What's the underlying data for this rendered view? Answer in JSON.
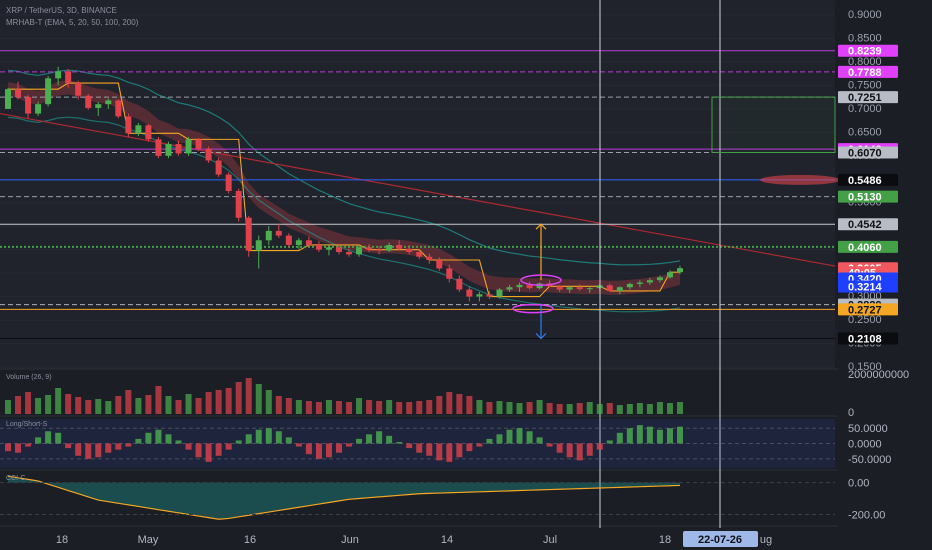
{
  "header": {
    "symbol_line": "XRP / TetherUS, 3D, BINANCE",
    "indicator_line": "MRHAB-T (EMA, 5, 20, 50, 100, 200)"
  },
  "colors": {
    "background": "#1c1e26",
    "up": "#4caf50",
    "down": "#e0424b",
    "accent_magenta": "#e040fb",
    "accent_orange": "#f5a623",
    "accent_blue": "#2962ff"
  },
  "chart_data": [
    {
      "type": "candlestick",
      "pane": "price",
      "title": "XRP / TetherUS, 3D, BINANCE",
      "indicator": "MRHAB-T (EMA, 5, 20, 50, 100, 200)",
      "ylim": [
        0.15,
        0.92
      ],
      "price_ticks": [
        "0.9000",
        "0.8500",
        "0.8000",
        "0.7500",
        "0.7000",
        "0.6500",
        "0.6000",
        "0.5500",
        "0.5000",
        "0.4500",
        "0.4000",
        "0.3500",
        "0.3000",
        "0.2500",
        "0.2000",
        "0.1500"
      ],
      "price_tags": [
        {
          "label": "0.8239",
          "value": 0.8239,
          "bg": "#e040fb",
          "fg": "#ffffff"
        },
        {
          "label": "0.7788",
          "value": 0.7788,
          "bg": "#e040fb",
          "fg": "#ffffff"
        },
        {
          "label": "0.7251",
          "value": 0.7251,
          "bg": "#b8bcc4",
          "fg": "#101218"
        },
        {
          "label": "0.6143",
          "value": 0.6143,
          "bg": "#e040fb",
          "fg": "#ffffff"
        },
        {
          "label": "0.6070",
          "value": 0.607,
          "bg": "#b8bcc4",
          "fg": "#101218"
        },
        {
          "label": "0.5486",
          "value": 0.5486,
          "bg": "#0b0c10",
          "fg": "#ffffff"
        },
        {
          "label": "0.5130",
          "value": 0.513,
          "bg": "#43a047",
          "fg": "#ffffff"
        },
        {
          "label": "0.4542",
          "value": 0.4542,
          "bg": "#b8bcc4",
          "fg": "#101218"
        },
        {
          "label": "0.4060",
          "value": 0.406,
          "bg": "#43a047",
          "fg": "#ffffff"
        },
        {
          "label": "0.3605",
          "value": 0.3605,
          "bg": "#f0575e",
          "fg": "#ffffff"
        },
        {
          "label": "49:05",
          "value": 0.3515,
          "bg": "#f0575e",
          "fg": "#ffffff"
        },
        {
          "label": "0.3420",
          "value": 0.3385,
          "bg": "#1f3fff",
          "fg": "#ffffff"
        },
        {
          "label": "0.3214",
          "value": 0.3214,
          "bg": "#1f3fff",
          "fg": "#ffffff"
        },
        {
          "label": "0.2829",
          "value": 0.2829,
          "bg": "#b8bcc4",
          "fg": "#101218"
        },
        {
          "label": "0.2727",
          "value": 0.2727,
          "bg": "#f5a623",
          "fg": "#101218"
        },
        {
          "label": "0.2108",
          "value": 0.2108,
          "bg": "#0b0c10",
          "fg": "#ffffff"
        }
      ],
      "horizontal_levels": [
        {
          "value": 0.8239,
          "color": "#b83cd8",
          "style": "solid"
        },
        {
          "value": 0.7788,
          "color": "#b83cd8",
          "style": "dashed"
        },
        {
          "value": 0.7251,
          "color": "#9aa0a6",
          "style": "dashed"
        },
        {
          "value": 0.6143,
          "color": "#b83cd8",
          "style": "solid"
        },
        {
          "value": 0.607,
          "color": "#9aa0a6",
          "style": "dashed"
        },
        {
          "value": 0.5486,
          "color": "#2962ff",
          "style": "solid"
        },
        {
          "value": 0.513,
          "color": "#9aa0a6",
          "style": "dashed"
        },
        {
          "value": 0.4542,
          "color": "#c7c9cc",
          "style": "solid"
        },
        {
          "value": 0.406,
          "color": "#43a047",
          "style": "dotted"
        },
        {
          "value": 0.2829,
          "color": "#b0b3b8",
          "style": "dashed"
        },
        {
          "value": 0.2727,
          "color": "#f5a623",
          "style": "solid"
        },
        {
          "value": 0.2108,
          "color": "#0b0c10",
          "style": "solid"
        }
      ],
      "candles": [
        [
          0.7,
          0.745,
          0.7,
          0.742
        ],
        [
          0.742,
          0.758,
          0.72,
          0.725
        ],
        [
          0.725,
          0.73,
          0.68,
          0.69
        ],
        [
          0.69,
          0.715,
          0.685,
          0.71
        ],
        [
          0.71,
          0.77,
          0.705,
          0.765
        ],
        [
          0.765,
          0.79,
          0.75,
          0.78
        ],
        [
          0.78,
          0.785,
          0.745,
          0.755
        ],
        [
          0.755,
          0.76,
          0.72,
          0.728
        ],
        [
          0.728,
          0.732,
          0.698,
          0.702
        ],
        [
          0.702,
          0.715,
          0.685,
          0.71
        ],
        [
          0.71,
          0.722,
          0.7,
          0.718
        ],
        [
          0.718,
          0.72,
          0.68,
          0.684
        ],
        [
          0.684,
          0.69,
          0.64,
          0.648
        ],
        [
          0.648,
          0.67,
          0.642,
          0.665
        ],
        [
          0.665,
          0.668,
          0.63,
          0.635
        ],
        [
          0.635,
          0.64,
          0.595,
          0.6
        ],
        [
          0.6,
          0.63,
          0.595,
          0.625
        ],
        [
          0.625,
          0.632,
          0.6,
          0.605
        ],
        [
          0.605,
          0.64,
          0.6,
          0.635
        ],
        [
          0.635,
          0.638,
          0.61,
          0.615
        ],
        [
          0.615,
          0.62,
          0.585,
          0.59
        ],
        [
          0.59,
          0.596,
          0.555,
          0.56
        ],
        [
          0.56,
          0.565,
          0.52,
          0.525
        ],
        [
          0.525,
          0.53,
          0.46,
          0.468
        ],
        [
          0.468,
          0.472,
          0.385,
          0.398
        ],
        [
          0.398,
          0.43,
          0.36,
          0.42
        ],
        [
          0.42,
          0.45,
          0.41,
          0.44
        ],
        [
          0.44,
          0.455,
          0.425,
          0.43
        ],
        [
          0.43,
          0.435,
          0.405,
          0.41
        ],
        [
          0.41,
          0.425,
          0.4,
          0.42
        ],
        [
          0.42,
          0.428,
          0.405,
          0.41
        ],
        [
          0.41,
          0.418,
          0.395,
          0.4
        ],
        [
          0.4,
          0.41,
          0.388,
          0.405
        ],
        [
          0.405,
          0.41,
          0.39,
          0.395
        ],
        [
          0.395,
          0.402,
          0.385,
          0.39
        ],
        [
          0.39,
          0.41,
          0.385,
          0.405
        ],
        [
          0.405,
          0.412,
          0.395,
          0.4
        ],
        [
          0.4,
          0.408,
          0.39,
          0.398
        ],
        [
          0.398,
          0.415,
          0.395,
          0.41
        ],
        [
          0.41,
          0.42,
          0.398,
          0.402
        ],
        [
          0.402,
          0.41,
          0.39,
          0.395
        ],
        [
          0.395,
          0.4,
          0.38,
          0.385
        ],
        [
          0.385,
          0.392,
          0.37,
          0.378
        ],
        [
          0.378,
          0.384,
          0.355,
          0.36
        ],
        [
          0.36,
          0.368,
          0.33,
          0.338
        ],
        [
          0.338,
          0.345,
          0.31,
          0.315
        ],
        [
          0.315,
          0.322,
          0.29,
          0.3
        ],
        [
          0.3,
          0.31,
          0.29,
          0.305
        ],
        [
          0.305,
          0.312,
          0.295,
          0.3
        ],
        [
          0.3,
          0.318,
          0.296,
          0.315
        ],
        [
          0.315,
          0.325,
          0.31,
          0.32
        ],
        [
          0.32,
          0.33,
          0.31,
          0.325
        ],
        [
          0.325,
          0.332,
          0.315,
          0.318
        ],
        [
          0.318,
          0.33,
          0.315,
          0.328
        ],
        [
          0.328,
          0.335,
          0.32,
          0.322
        ],
        [
          0.322,
          0.325,
          0.31,
          0.315
        ],
        [
          0.315,
          0.322,
          0.308,
          0.32
        ],
        [
          0.32,
          0.326,
          0.312,
          0.316
        ],
        [
          0.316,
          0.322,
          0.308,
          0.318
        ],
        [
          0.318,
          0.328,
          0.312,
          0.324
        ],
        [
          0.324,
          0.328,
          0.31,
          0.312
        ],
        [
          0.312,
          0.322,
          0.305,
          0.32
        ],
        [
          0.32,
          0.33,
          0.315,
          0.327
        ],
        [
          0.327,
          0.335,
          0.32,
          0.33
        ],
        [
          0.33,
          0.34,
          0.325,
          0.335
        ],
        [
          0.335,
          0.345,
          0.33,
          0.341
        ],
        [
          0.341,
          0.356,
          0.338,
          0.352
        ],
        [
          0.352,
          0.366,
          0.348,
          0.3605
        ]
      ],
      "arrows": [
        {
          "direction": "up",
          "from": 0.335,
          "to": 0.4542,
          "color": "#f5a623"
        },
        {
          "direction": "down",
          "from": 0.2829,
          "to": 0.2108,
          "color": "#2e7de9"
        }
      ]
    },
    {
      "type": "bar",
      "pane": "volume",
      "title": "Volume (26, 9)",
      "yticks": [
        "2000000000",
        "0"
      ],
      "ylim": [
        0,
        2000000000
      ],
      "values": [
        700000000,
        900000000,
        1100000000,
        800000000,
        950000000,
        1300000000,
        1000000000,
        850000000,
        700000000,
        750000000,
        650000000,
        900000000,
        1200000000,
        800000000,
        950000000,
        1400000000,
        900000000,
        700000000,
        1000000000,
        800000000,
        1100000000,
        1200000000,
        1300000000,
        1600000000,
        1800000000,
        1500000000,
        1200000000,
        900000000,
        800000000,
        700000000,
        650000000,
        600000000,
        700000000,
        650000000,
        600000000,
        800000000,
        700000000,
        650000000,
        700000000,
        600000000,
        600000000,
        650000000,
        700000000,
        900000000,
        1100000000,
        1000000000,
        900000000,
        700000000,
        600000000,
        650000000,
        600000000,
        550000000,
        600000000,
        700000000,
        550000000,
        500000000,
        500000000,
        550000000,
        600000000,
        500000000,
        550000000,
        450000000,
        500000000,
        550000000,
        500000000,
        600000000,
        550000000,
        600000000
      ]
    },
    {
      "type": "bar",
      "pane": "long-short",
      "title": "Long/Short-S",
      "yticks": [
        "50.0000",
        "0.0000",
        "-50.0000"
      ],
      "ylim": [
        -80,
        80
      ],
      "values": [
        -25,
        -30,
        -10,
        20,
        40,
        35,
        -15,
        -40,
        -50,
        -45,
        -30,
        -20,
        -10,
        15,
        35,
        45,
        30,
        10,
        -20,
        -45,
        -60,
        -40,
        -20,
        10,
        30,
        45,
        50,
        40,
        20,
        -10,
        -35,
        -50,
        -45,
        -30,
        -10,
        15,
        30,
        40,
        25,
        5,
        -15,
        -30,
        -40,
        -55,
        -60,
        -45,
        -25,
        -10,
        15,
        30,
        45,
        50,
        40,
        20,
        -10,
        -30,
        -45,
        -55,
        -40,
        -20,
        10,
        35,
        50,
        60,
        55,
        45,
        50,
        55
      ]
    },
    {
      "type": "area",
      "pane": "cci-c",
      "title": "CCI-C",
      "yticks": [
        "0.00",
        "-200.00"
      ],
      "ylim": [
        -260,
        60
      ],
      "values": [
        40,
        30,
        20,
        10,
        -10,
        -30,
        -50,
        -70,
        -90,
        -110,
        -120,
        -130,
        -140,
        -150,
        -160,
        -170,
        -180,
        -190,
        -200,
        -210,
        -220,
        -230,
        -225,
        -215,
        -205,
        -195,
        -185,
        -175,
        -165,
        -155,
        -145,
        -135,
        -125,
        -115,
        -105,
        -100,
        -95,
        -90,
        -85,
        -80,
        -75,
        -70,
        -68,
        -66,
        -64,
        -62,
        -60,
        -58,
        -56,
        -54,
        -52,
        -50,
        -48,
        -46,
        -44,
        -42,
        -40,
        -38,
        -36,
        -34,
        -32,
        -30,
        -28,
        -26,
        -24,
        -22,
        -20,
        -18
      ]
    }
  ],
  "time_axis": {
    "labels": [
      "18",
      "May",
      "16",
      "Jun",
      "14",
      "Jul",
      "18"
    ],
    "cursor_label": "22-07-26",
    "cut_label": "ug"
  }
}
